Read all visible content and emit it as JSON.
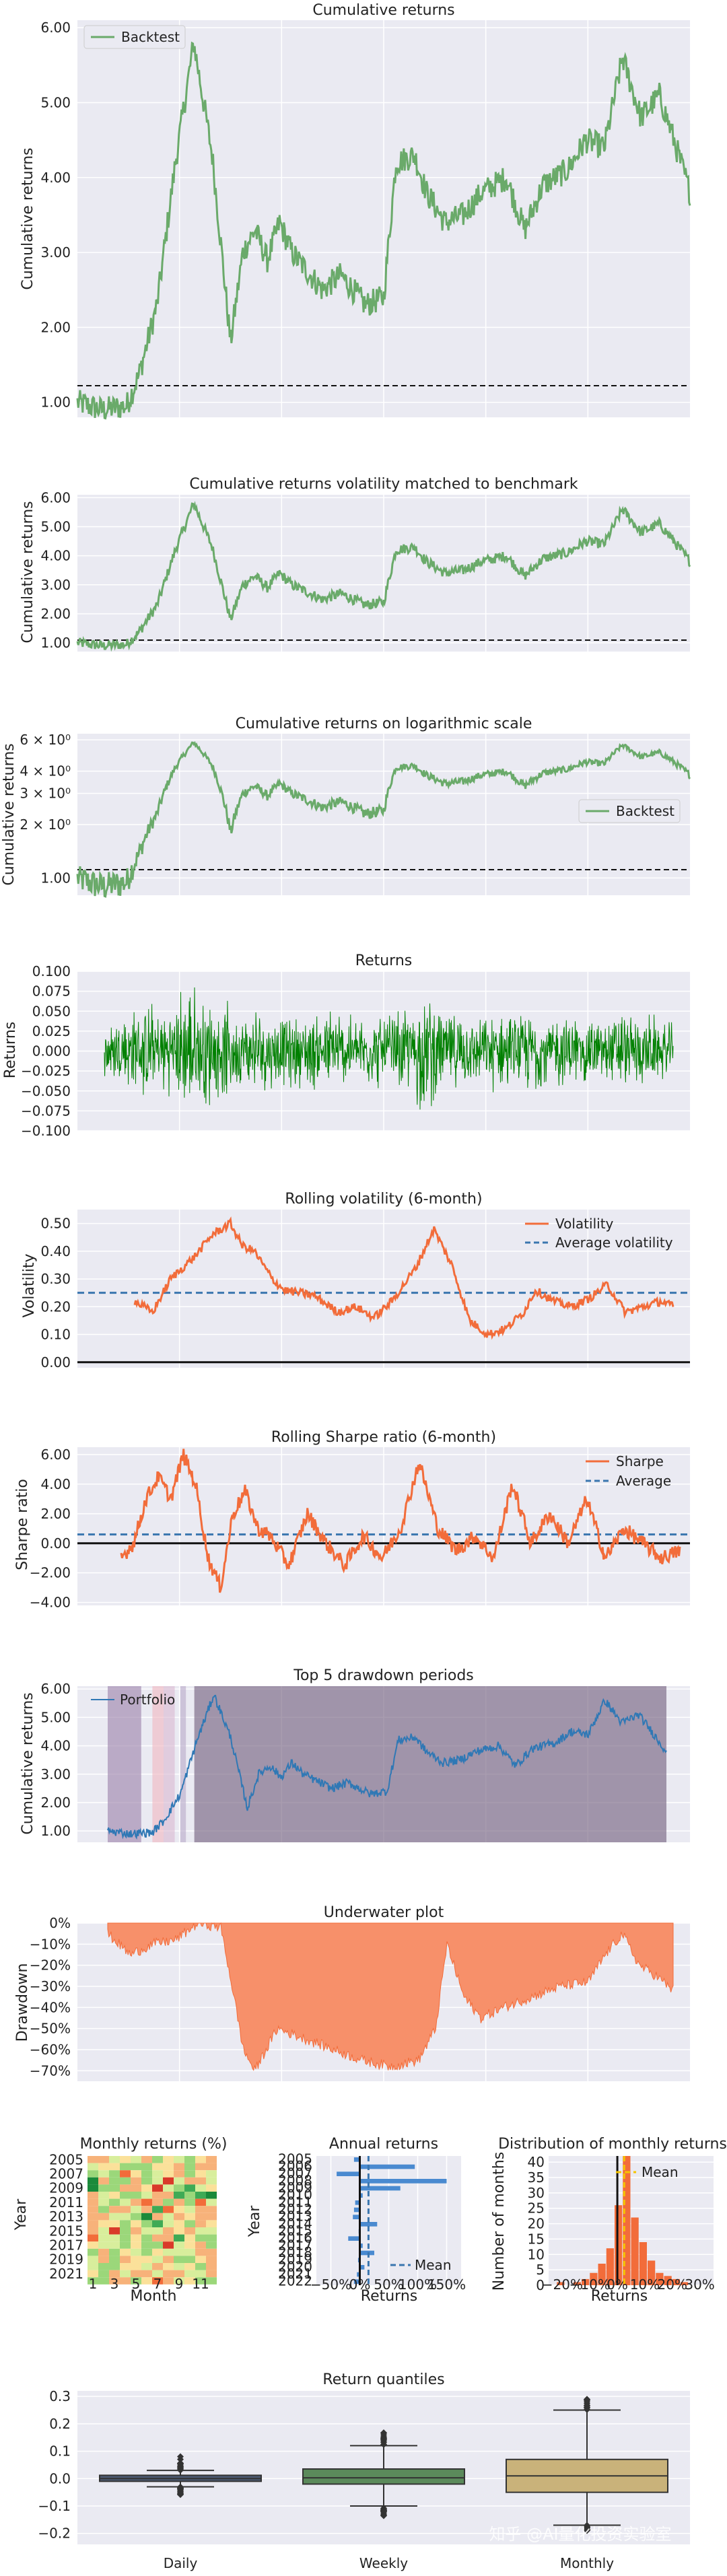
{
  "watermark": "知乎 @AI量化投资实验室",
  "colors": {
    "backtest": "#6aaa6a",
    "returns": "#008000",
    "rolling": "#f26c3a",
    "average": "#3a76af",
    "portfolio": "#2f78b5",
    "underwater": "#f7906a",
    "plot_bg": "#eaeaf2"
  },
  "chart_data": [
    {
      "id": "cumret",
      "type": "line",
      "title": "Cumulative returns",
      "ylabel": "Cumulative returns",
      "yticks": [
        "6.00",
        "5.00",
        "4.00",
        "3.00",
        "2.00",
        "1.00"
      ],
      "ylim": [
        0.8,
        6.1
      ],
      "legend": [
        "Backtest"
      ],
      "benchmark_level": 1.0,
      "series": [
        {
          "name": "Backtest",
          "x": [
            0,
            0.04,
            0.08,
            0.1,
            0.13,
            0.16,
            0.19,
            0.22,
            0.25,
            0.27,
            0.29,
            0.31,
            0.33,
            0.35,
            0.37,
            0.4,
            0.43,
            0.47,
            0.5,
            0.52,
            0.55,
            0.57,
            0.6,
            0.63,
            0.66,
            0.7,
            0.73,
            0.76,
            0.8,
            0.83,
            0.86,
            0.89,
            0.92,
            0.95,
            0.97,
            1.0
          ],
          "values": [
            1.0,
            0.9,
            0.95,
            1.35,
            2.3,
            4.2,
            5.8,
            4.3,
            1.8,
            3.0,
            3.3,
            2.9,
            3.4,
            3.0,
            2.8,
            2.5,
            2.7,
            2.3,
            2.4,
            4.2,
            4.3,
            3.8,
            3.4,
            3.5,
            3.8,
            4.0,
            3.3,
            3.9,
            4.1,
            4.5,
            4.4,
            5.6,
            4.8,
            5.1,
            4.6,
            3.8
          ]
        }
      ]
    },
    {
      "id": "cumvol",
      "type": "line",
      "title": "Cumulative returns volatility matched to benchmark",
      "ylabel": "Cumulative returns",
      "yticks": [
        "6.00",
        "5.00",
        "4.00",
        "3.00",
        "2.00",
        "1.00"
      ],
      "ylim": [
        0.7,
        6.1
      ],
      "benchmark_level": 1.0,
      "series": [
        {
          "name": "Backtest",
          "ref": "cumret"
        }
      ]
    },
    {
      "id": "cumlog",
      "type": "line",
      "title": "Cumulative returns on logarithmic scale",
      "ylabel": "Cumulative returns",
      "yticks": [
        "6 × 10⁰",
        "4 × 10⁰",
        "3 × 10⁰",
        "2 × 10⁰",
        "1.00"
      ],
      "log_scale": true,
      "legend": [
        "Backtest"
      ],
      "benchmark_level": 1.0,
      "series": [
        {
          "name": "Backtest",
          "ref": "cumret"
        }
      ]
    },
    {
      "id": "returns",
      "type": "line",
      "title": "Returns",
      "ylabel": "Returns",
      "yticks": [
        "0.100",
        "0.075",
        "0.050",
        "0.025",
        "0.000",
        "−0.025",
        "−0.050",
        "−0.075",
        "−0.100"
      ],
      "ylim": [
        -0.1,
        0.1
      ],
      "amplitude_profile": [
        0.05,
        0.06,
        0.065,
        0.06,
        0.09,
        0.08,
        0.065,
        0.05,
        0.06,
        0.05,
        0.05,
        0.055,
        0.06,
        0.05,
        0.05,
        0.055,
        0.06,
        0.08,
        0.06,
        0.05,
        0.045,
        0.055,
        0.05,
        0.06,
        0.05,
        0.05,
        0.045,
        0.05,
        0.055,
        0.05,
        0.04
      ]
    },
    {
      "id": "rollvol",
      "type": "line",
      "title": "Rolling volatility (6-month)",
      "ylabel": "Volatility",
      "yticks": [
        "0.50",
        "0.40",
        "0.30",
        "0.20",
        "0.10",
        "0.00"
      ],
      "ylim": [
        -0.02,
        0.55
      ],
      "legend": [
        "Volatility",
        "Average volatility"
      ],
      "average": 0.25,
      "series": [
        {
          "name": "Volatility",
          "x": [
            0.1,
            0.13,
            0.16,
            0.2,
            0.23,
            0.26,
            0.28,
            0.3,
            0.33,
            0.35,
            0.4,
            0.44,
            0.47,
            0.5,
            0.53,
            0.57,
            0.6,
            0.63,
            0.66,
            0.69,
            0.72,
            0.75,
            0.77,
            0.8,
            0.83,
            0.86,
            0.89,
            0.92,
            0.95,
            0.98,
            1.0
          ],
          "values": [
            0.22,
            0.18,
            0.3,
            0.38,
            0.46,
            0.5,
            0.42,
            0.4,
            0.3,
            0.26,
            0.24,
            0.18,
            0.2,
            0.16,
            0.22,
            0.34,
            0.48,
            0.35,
            0.15,
            0.1,
            0.12,
            0.18,
            0.26,
            0.22,
            0.2,
            0.23,
            0.28,
            0.18,
            0.2,
            0.22,
            0.2
          ]
        }
      ]
    },
    {
      "id": "rollsharpe",
      "type": "line",
      "title": "Rolling Sharpe ratio (6-month)",
      "ylabel": "Sharpe ratio",
      "yticks": [
        "6.00",
        "4.00",
        "2.00",
        "0.00",
        "−2.00",
        "−4.00"
      ],
      "ylim": [
        -4.2,
        6.5
      ],
      "legend": [
        "Sharpe",
        "Average"
      ],
      "average": 0.6,
      "series": [
        {
          "name": "Sharpe",
          "x": [
            0.1,
            0.12,
            0.14,
            0.16,
            0.18,
            0.2,
            0.22,
            0.24,
            0.26,
            0.28,
            0.3,
            0.32,
            0.34,
            0.37,
            0.4,
            0.43,
            0.46,
            0.49,
            0.52,
            0.55,
            0.58,
            0.61,
            0.64,
            0.67,
            0.7,
            0.73,
            0.76,
            0.79,
            0.82,
            0.85,
            0.88,
            0.91,
            0.94,
            0.97,
            1.0
          ],
          "values": [
            -1.0,
            0.0,
            3.0,
            4.5,
            3.0,
            6.0,
            4.0,
            -1.0,
            -3.0,
            2.0,
            3.5,
            1.0,
            0.5,
            -1.5,
            2.0,
            0.0,
            -1.5,
            0.5,
            -1.0,
            1.0,
            5.5,
            1.0,
            -0.5,
            0.5,
            -1.0,
            4.0,
            0.0,
            2.0,
            0.0,
            3.0,
            -1.0,
            1.0,
            0.0,
            -1.0,
            -0.5
          ]
        }
      ]
    },
    {
      "id": "drawdown",
      "type": "line",
      "title": "Top 5 drawdown periods",
      "ylabel": "Cumulative returns",
      "yticks": [
        "6.00",
        "5.00",
        "4.00",
        "3.00",
        "2.00",
        "1.00"
      ],
      "ylim": [
        0.6,
        6.1
      ],
      "legend": [
        "Portfolio"
      ],
      "series": [
        {
          "name": "Portfolio",
          "ref": "cumret"
        }
      ],
      "shaded_periods": [
        [
          0.0,
          0.06,
          "#9a7fa8"
        ],
        [
          0.08,
          0.1,
          "#f0b5c0"
        ],
        [
          0.1,
          0.12,
          "#d9b8d0"
        ],
        [
          0.13,
          0.14,
          "#b8a8c8"
        ],
        [
          0.155,
          1.0,
          "#6e5a7a"
        ]
      ]
    },
    {
      "id": "underwater",
      "type": "area",
      "title": "Underwater plot",
      "ylabel": "Drawdown",
      "yticks": [
        "0%",
        "−10%",
        "−20%",
        "−30%",
        "−40%",
        "−50%",
        "−60%",
        "−70%"
      ],
      "ylim": [
        -75,
        0
      ],
      "series": [
        {
          "name": "Drawdown",
          "x": [
            0,
            0.04,
            0.08,
            0.12,
            0.16,
            0.2,
            0.22,
            0.24,
            0.26,
            0.3,
            0.35,
            0.4,
            0.45,
            0.5,
            0.55,
            0.58,
            0.6,
            0.63,
            0.66,
            0.7,
            0.75,
            0.8,
            0.85,
            0.88,
            0.91,
            0.94,
            0.97,
            1.0
          ],
          "values": [
            -5,
            -15,
            -10,
            -8,
            0,
            -2,
            -30,
            -60,
            -70,
            -50,
            -55,
            -60,
            -65,
            -68,
            -65,
            -50,
            -10,
            -35,
            -45,
            -40,
            -35,
            -30,
            -28,
            -15,
            -5,
            -20,
            -25,
            -32
          ]
        }
      ]
    },
    {
      "id": "monthly",
      "type": "heatmap",
      "title": "Monthly returns (%)",
      "ylabel": "Year",
      "xlabel": "Month",
      "years": [
        "2005",
        "2006",
        "2007",
        "2008",
        "2009",
        "2010",
        "2011",
        "2012",
        "2013",
        "2014",
        "2015",
        "2016",
        "2017",
        "2018",
        "2019",
        "2020",
        "2021",
        "2022"
      ],
      "ytick_labels": [
        "2005",
        "2007",
        "2009",
        "2011",
        "2013",
        "2015",
        "2017",
        "2019",
        "2021"
      ],
      "xtick_labels": [
        "1",
        "3",
        "5",
        "7",
        "9",
        "11"
      ]
    },
    {
      "id": "annual",
      "type": "bar",
      "title": "Annual returns",
      "ylabel": "Year",
      "xlabel": "Returns",
      "xticks": [
        "−50%",
        "0%",
        "50%",
        "100%",
        "150%"
      ],
      "legend": [
        "Mean"
      ],
      "categories": [
        "2005",
        "2006",
        "2007",
        "2008",
        "2009",
        "2010",
        "2011",
        "2012",
        "2013",
        "2014",
        "2015",
        "2016",
        "2017",
        "2018",
        "2019",
        "2020",
        "2021",
        "2022"
      ],
      "values": [
        -10,
        95,
        -40,
        150,
        70,
        5,
        -8,
        -10,
        -12,
        30,
        -2,
        -20,
        5,
        25,
        -3,
        8,
        -5,
        -10
      ],
      "mean": 15
    },
    {
      "id": "distribution",
      "type": "bar",
      "title": "Distribution of monthly returns",
      "ylabel": "Number of months",
      "xlabel": "Returns",
      "xticks": [
        "−20%",
        "−10%",
        "0%",
        "10%",
        "20%",
        "30%"
      ],
      "yticks": [
        "40",
        "35",
        "30",
        "25",
        "20",
        "15",
        "10",
        "5",
        "0"
      ],
      "legend": [
        "Mean"
      ],
      "bin_edges": [
        -22,
        -19,
        -16,
        -13,
        -10,
        -7,
        -4,
        -1,
        2,
        5,
        8,
        11,
        14,
        17,
        20,
        23,
        26
      ],
      "values": [
        1,
        0,
        1,
        2,
        4,
        7,
        12,
        26,
        42,
        22,
        14,
        8,
        4,
        3,
        2,
        1
      ],
      "mean": 2.5
    },
    {
      "id": "quantiles",
      "type": "box",
      "title": "Return quantiles",
      "categories": [
        "Daily",
        "Weekly",
        "Monthly"
      ],
      "yticks": [
        "0.3",
        "0.2",
        "0.1",
        "0.0",
        "−0.1",
        "−0.2"
      ],
      "ylim": [
        -0.24,
        0.32
      ],
      "boxes": [
        {
          "q1": -0.01,
          "med": 0.0,
          "q3": 0.012,
          "wlo": -0.03,
          "whi": 0.03,
          "outlo": -0.06,
          "outhi": 0.1
        },
        {
          "q1": -0.02,
          "med": 0.003,
          "q3": 0.035,
          "wlo": -0.1,
          "whi": 0.12,
          "outlo": -0.14,
          "outhi": 0.17
        },
        {
          "q1": -0.05,
          "med": 0.01,
          "q3": 0.07,
          "wlo": -0.17,
          "whi": 0.25,
          "outlo": -0.19,
          "outhi": 0.29
        }
      ],
      "colors": [
        "#4c5a72",
        "#5b8a5b",
        "#c9b27a"
      ]
    }
  ]
}
